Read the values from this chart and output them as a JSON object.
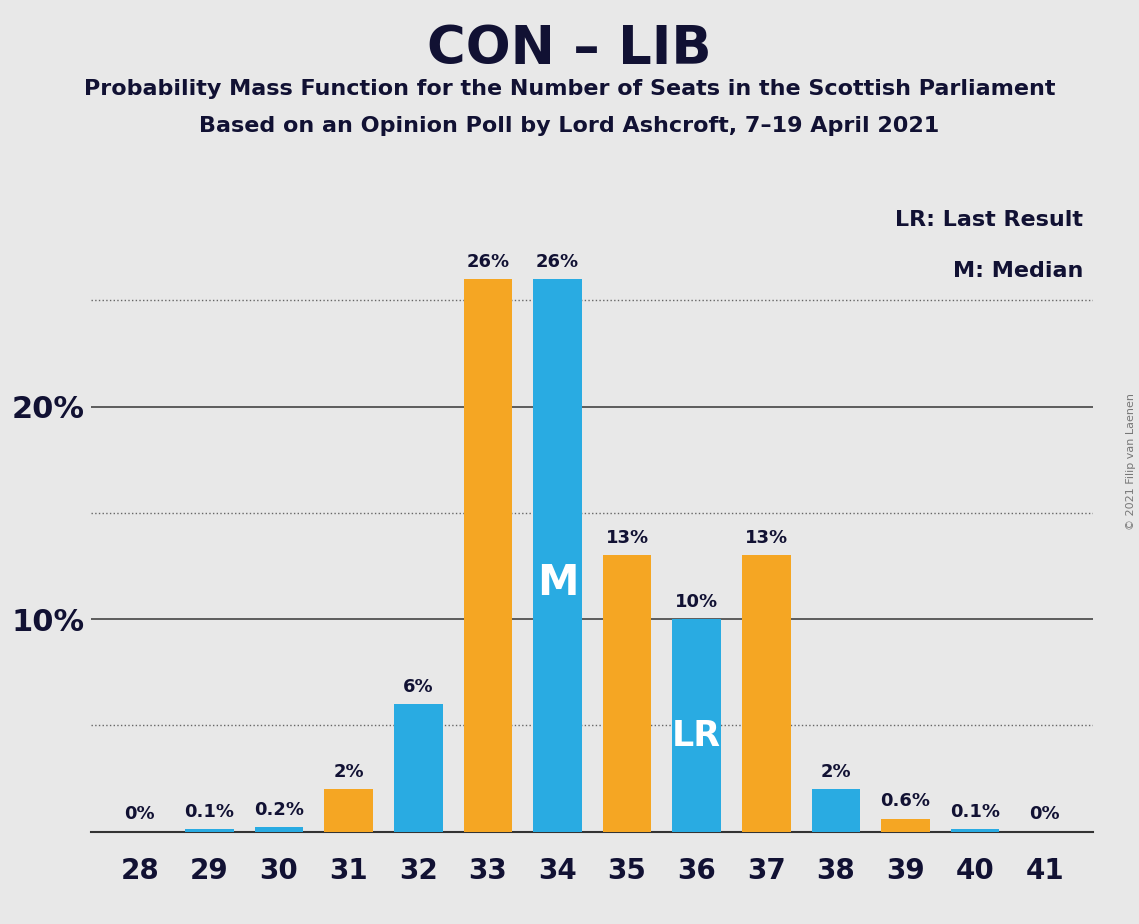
{
  "title": "CON – LIB",
  "subtitle1": "Probability Mass Function for the Number of Seats in the Scottish Parliament",
  "subtitle2": "Based on an Opinion Poll by Lord Ashcroft, 7–19 April 2021",
  "copyright": "© 2021 Filip van Laenen",
  "seats": [
    28,
    29,
    30,
    31,
    32,
    33,
    34,
    35,
    36,
    37,
    38,
    39,
    40,
    41
  ],
  "values": [
    0.0,
    0.1,
    0.2,
    2.0,
    6.0,
    26.0,
    26.0,
    13.0,
    10.0,
    13.0,
    2.0,
    0.6,
    0.1,
    0.0
  ],
  "colors": [
    "#29ABE2",
    "#29ABE2",
    "#29ABE2",
    "#F5A623",
    "#29ABE2",
    "#F5A623",
    "#29ABE2",
    "#F5A623",
    "#29ABE2",
    "#F5A623",
    "#29ABE2",
    "#F5A623",
    "#29ABE2",
    "#29ABE2"
  ],
  "labels": [
    "0%",
    "0.1%",
    "0.2%",
    "2%",
    "6%",
    "26%",
    "26%",
    "13%",
    "10%",
    "13%",
    "2%",
    "0.6%",
    "0.1%",
    "0%"
  ],
  "orange_color": "#F5A623",
  "blue_color": "#29ABE2",
  "background_color": "#E8E8E8",
  "median_seat": 34,
  "lr_seat": 36,
  "legend_lr": "LR: Last Result",
  "legend_m": "M: Median",
  "ylim": [
    0,
    30
  ],
  "solid_yticks": [
    0,
    10,
    20
  ],
  "dotted_yticks": [
    5,
    15,
    25
  ],
  "ylabel_ticks": [
    10,
    20
  ],
  "bar_width": 0.7
}
